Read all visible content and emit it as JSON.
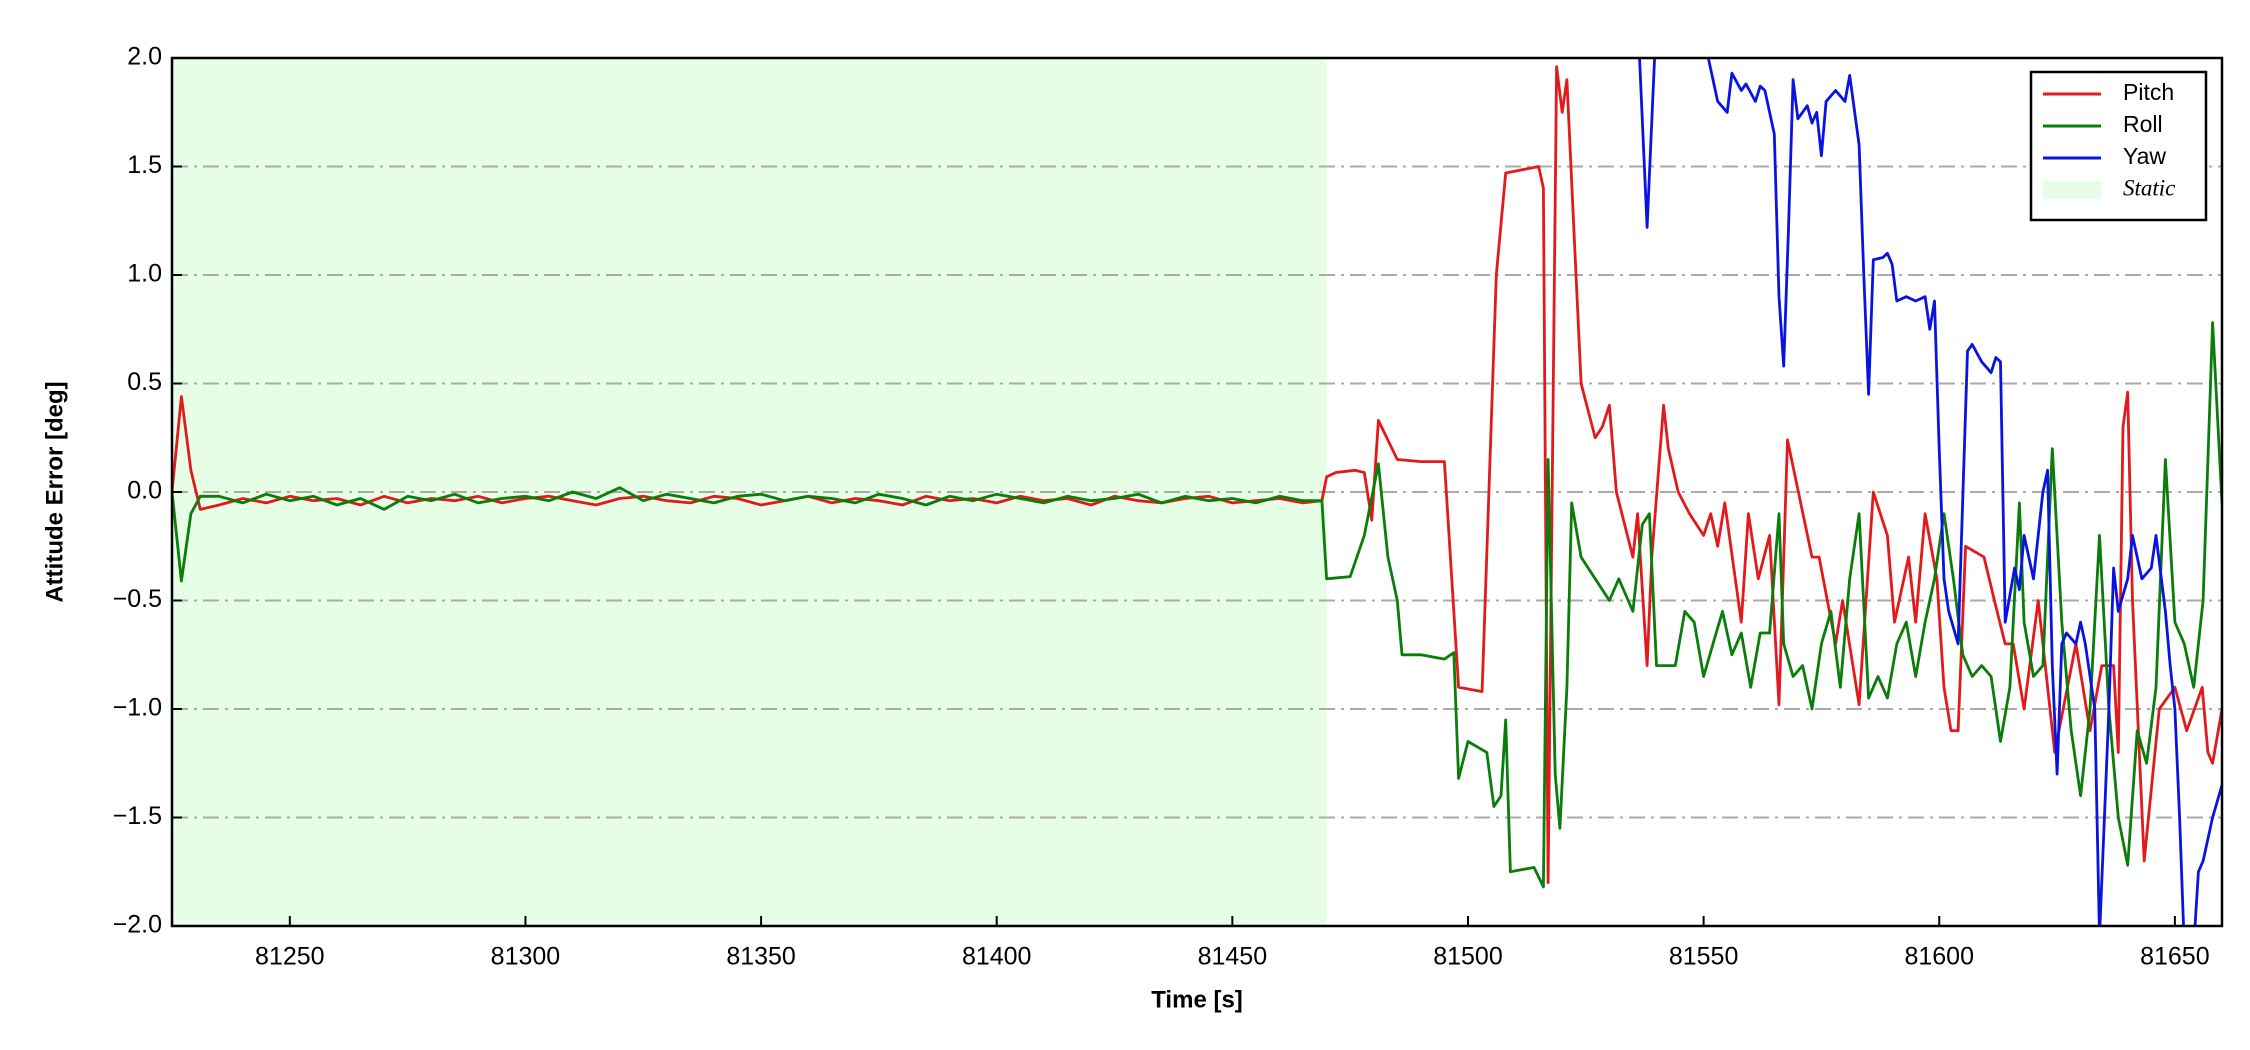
{
  "chart_data": {
    "type": "line",
    "xlabel": "Time [s]",
    "ylabel": "Attitude Error [deg]",
    "xlim": [
      81225,
      81660
    ],
    "ylim": [
      -2.0,
      2.0
    ],
    "xticks": [
      81250,
      81300,
      81350,
      81400,
      81450,
      81500,
      81550,
      81600,
      81650
    ],
    "yticks": [
      {
        "value": -2.0,
        "label": "−2.0"
      },
      {
        "value": -1.5,
        "label": "−1.5"
      },
      {
        "value": -1.0,
        "label": "−1.0"
      },
      {
        "value": -0.5,
        "label": "−0.5"
      },
      {
        "value": 0.0,
        "label": "0.0"
      },
      {
        "value": 0.5,
        "label": "0.5"
      },
      {
        "value": 1.0,
        "label": "1.0"
      },
      {
        "value": 1.5,
        "label": "1.5"
      },
      {
        "value": 2.0,
        "label": "2.0"
      }
    ],
    "grid": true,
    "legend": "upper right",
    "spans": [
      {
        "name": "Static",
        "start": 81225,
        "end": 81470,
        "color": "#e6fde6"
      }
    ],
    "series": [
      {
        "name": "Pitch",
        "color": "#e31a1c",
        "x": [
          81225,
          81227,
          81229,
          81231,
          81235,
          81240,
          81245,
          81250,
          81255,
          81260,
          81265,
          81270,
          81275,
          81280,
          81285,
          81290,
          81295,
          81300,
          81305,
          81310,
          81315,
          81320,
          81325,
          81330,
          81335,
          81340,
          81345,
          81350,
          81355,
          81360,
          81365,
          81370,
          81375,
          81380,
          81385,
          81390,
          81395,
          81400,
          81405,
          81410,
          81415,
          81420,
          81425,
          81430,
          81435,
          81440,
          81445,
          81450,
          81455,
          81460,
          81465,
          81469,
          81470,
          81472,
          81476,
          81478,
          81479.6,
          81481,
          81485,
          81490,
          81495,
          81498,
          81503,
          81506,
          81508,
          81515,
          81516,
          81517,
          81518.8,
          81520,
          81521,
          81524,
          81527,
          81528.5,
          81530,
          81531.5,
          81535,
          81536,
          81538,
          81539,
          81541.5,
          81542.5,
          81544.6,
          81547,
          81550,
          81551.5,
          81553,
          81554.5,
          81558,
          81559.5,
          81561.6,
          81564,
          81566,
          81567.8,
          81573,
          81574.5,
          81578,
          81579.5,
          81583,
          81586,
          81589,
          81590.5,
          81593.5,
          81595,
          81597,
          81599.5,
          81601,
          81602.5,
          81604,
          81605.6,
          81609.5,
          81611.7,
          81614,
          81615.7,
          81618,
          81621,
          81624.5,
          81629,
          81632,
          81634.5,
          81637,
          81638,
          81639,
          81640,
          81641,
          81643.5,
          81646.7,
          81650,
          81652.5,
          81655.8,
          81657,
          81658,
          81660
        ],
        "values": [
          0,
          0.44,
          0.1,
          -0.08,
          -0.06,
          -0.03,
          -0.05,
          -0.02,
          -0.04,
          -0.03,
          -0.06,
          -0.02,
          -0.05,
          -0.03,
          -0.04,
          -0.02,
          -0.05,
          -0.03,
          -0.02,
          -0.04,
          -0.06,
          -0.03,
          -0.02,
          -0.04,
          -0.05,
          -0.02,
          -0.03,
          -0.06,
          -0.04,
          -0.02,
          -0.05,
          -0.03,
          -0.04,
          -0.06,
          -0.02,
          -0.04,
          -0.03,
          -0.05,
          -0.02,
          -0.04,
          -0.03,
          -0.06,
          -0.02,
          -0.04,
          -0.05,
          -0.03,
          -0.02,
          -0.05,
          -0.04,
          -0.03,
          -0.05,
          -0.04,
          0.07,
          0.09,
          0.1,
          0.09,
          -0.13,
          0.33,
          0.15,
          0.14,
          0.14,
          -0.9,
          -0.92,
          1.0,
          1.47,
          1.5,
          1.4,
          -1.8,
          1.96,
          1.75,
          1.9,
          0.5,
          0.25,
          0.3,
          0.4,
          0.0,
          -0.3,
          -0.1,
          -0.8,
          -0.3,
          0.4,
          0.2,
          0.0,
          -0.1,
          -0.2,
          -0.1,
          -0.25,
          -0.05,
          -0.6,
          -0.1,
          -0.4,
          -0.2,
          -0.98,
          0.24,
          -0.3,
          -0.3,
          -0.7,
          -0.5,
          -0.98,
          0.0,
          -0.2,
          -0.6,
          -0.3,
          -0.6,
          -0.1,
          -0.4,
          -0.9,
          -1.1,
          -1.1,
          -0.25,
          -0.3,
          -0.5,
          -0.7,
          -0.7,
          -1.0,
          -0.5,
          -1.2,
          -0.7,
          -1.1,
          -0.8,
          -0.8,
          -1.2,
          0.3,
          0.46,
          -0.5,
          -1.7,
          -1.0,
          -0.9,
          -1.1,
          -0.9,
          -1.2,
          -1.25,
          -1.0
        ]
      },
      {
        "name": "Roll",
        "color": "#0a7d0a",
        "x": [
          81225,
          81227,
          81229,
          81231,
          81235,
          81240,
          81245,
          81250,
          81255,
          81260,
          81265,
          81270,
          81275,
          81280,
          81285,
          81290,
          81295,
          81300,
          81305,
          81310,
          81315,
          81320,
          81325,
          81330,
          81335,
          81340,
          81345,
          81350,
          81355,
          81360,
          81365,
          81370,
          81375,
          81380,
          81385,
          81390,
          81395,
          81400,
          81405,
          81410,
          81415,
          81420,
          81425,
          81430,
          81435,
          81440,
          81445,
          81450,
          81455,
          81460,
          81465,
          81469,
          81470,
          81475,
          81478,
          81481,
          81483,
          81485,
          81486,
          81490,
          81495,
          81497,
          81498,
          81500,
          81504,
          81505.5,
          81507,
          81508,
          81509,
          81514,
          81516,
          81517,
          81518.5,
          81519.5,
          81521,
          81522,
          81524,
          81527,
          81530,
          81532,
          81534,
          81535,
          81537,
          81538.5,
          81540,
          81544,
          81546,
          81548,
          81550,
          81552,
          81554,
          81556,
          81558,
          81560,
          81562,
          81564,
          81566,
          81567,
          81569,
          81571,
          81573,
          81575,
          81577,
          81579,
          81581,
          81583,
          81585,
          81587,
          81589,
          81591,
          81593,
          81595,
          81597,
          81599,
          81601,
          81603,
          81605,
          81607,
          81609,
          81611,
          81613,
          81615,
          81617,
          81618,
          81620,
          81622,
          81624,
          81626,
          81628,
          81630,
          81632,
          81634,
          81636,
          81638,
          81640,
          81642,
          81644,
          81646,
          81648,
          81650,
          81652,
          81654,
          81656,
          81658,
          81660
        ],
        "values": [
          0,
          -0.41,
          -0.1,
          -0.02,
          -0.02,
          -0.05,
          -0.01,
          -0.04,
          -0.02,
          -0.06,
          -0.03,
          -0.08,
          -0.02,
          -0.04,
          -0.01,
          -0.05,
          -0.03,
          -0.02,
          -0.04,
          0.0,
          -0.03,
          0.02,
          -0.04,
          -0.01,
          -0.03,
          -0.05,
          -0.02,
          -0.01,
          -0.04,
          -0.02,
          -0.03,
          -0.05,
          -0.01,
          -0.03,
          -0.06,
          -0.02,
          -0.04,
          -0.01,
          -0.03,
          -0.05,
          -0.02,
          -0.04,
          -0.03,
          -0.01,
          -0.05,
          -0.02,
          -0.04,
          -0.03,
          -0.05,
          -0.02,
          -0.04,
          -0.04,
          -0.4,
          -0.39,
          -0.2,
          0.13,
          -0.3,
          -0.5,
          -0.75,
          -0.75,
          -0.77,
          -0.74,
          -1.32,
          -1.15,
          -1.2,
          -1.45,
          -1.4,
          -1.05,
          -1.75,
          -1.73,
          -1.82,
          0.15,
          -1.3,
          -1.55,
          -0.9,
          -0.05,
          -0.3,
          -0.4,
          -0.5,
          -0.4,
          -0.5,
          -0.55,
          -0.15,
          -0.1,
          -0.8,
          -0.8,
          -0.55,
          -0.6,
          -0.85,
          -0.7,
          -0.55,
          -0.75,
          -0.65,
          -0.9,
          -0.65,
          -0.65,
          -0.1,
          -0.7,
          -0.85,
          -0.8,
          -1.0,
          -0.7,
          -0.55,
          -0.9,
          -0.4,
          -0.1,
          -0.95,
          -0.85,
          -0.95,
          -0.7,
          -0.6,
          -0.85,
          -0.6,
          -0.4,
          -0.1,
          -0.4,
          -0.75,
          -0.85,
          -0.8,
          -0.85,
          -1.15,
          -0.9,
          -0.05,
          -0.6,
          -0.85,
          -0.8,
          0.2,
          -0.6,
          -1.1,
          -1.4,
          -1.0,
          -0.2,
          -1.0,
          -1.5,
          -1.72,
          -1.1,
          -1.25,
          -0.9,
          0.15,
          -0.6,
          -0.7,
          -0.9,
          -0.5,
          0.78,
          -0.05
        ]
      },
      {
        "name": "Yaw",
        "color": "#0a14e0",
        "x": [
          81536,
          81538,
          81540,
          81550,
          81551,
          81553,
          81555,
          81556,
          81558,
          81559,
          81561,
          81562,
          81563,
          81565,
          81566,
          81567,
          81568,
          81569,
          81570,
          81572,
          81573,
          81574,
          81575,
          81576,
          81578,
          81580,
          81581,
          81583,
          81584,
          81585,
          81586,
          81588,
          81589,
          81590,
          81591,
          81593,
          81595,
          81597,
          81598,
          81599,
          81600,
          81601,
          81602,
          81604,
          81606,
          81607,
          81609,
          81611,
          81612,
          81613,
          81614,
          81616,
          81617,
          81618,
          81620,
          81622,
          81623,
          81624,
          81625,
          81626,
          81627,
          81629,
          81630,
          81631,
          81633,
          81634,
          81636,
          81637,
          81638,
          81640,
          81641,
          81643,
          81645,
          81646,
          81648,
          81649,
          81650,
          81651,
          81652,
          81654,
          81655,
          81656,
          81658,
          81660
        ],
        "values": [
          2.2,
          1.22,
          2.2,
          2.2,
          2.0,
          1.8,
          1.75,
          1.93,
          1.85,
          1.88,
          1.8,
          1.87,
          1.85,
          1.65,
          0.9,
          0.58,
          1.2,
          1.9,
          1.72,
          1.78,
          1.7,
          1.75,
          1.55,
          1.8,
          1.85,
          1.8,
          1.92,
          1.6,
          1.0,
          0.45,
          1.07,
          1.08,
          1.1,
          1.05,
          0.88,
          0.9,
          0.88,
          0.9,
          0.75,
          0.88,
          0.2,
          -0.4,
          -0.55,
          -0.7,
          0.65,
          0.68,
          0.6,
          0.55,
          0.62,
          0.6,
          -0.6,
          -0.35,
          -0.45,
          -0.2,
          -0.4,
          0.0,
          0.1,
          -0.8,
          -1.3,
          -0.7,
          -0.65,
          -0.7,
          -0.6,
          -0.7,
          -1.0,
          -2.05,
          -1.0,
          -0.35,
          -0.55,
          -0.4,
          -0.2,
          -0.4,
          -0.35,
          -0.2,
          -0.55,
          -0.8,
          -1.0,
          -1.5,
          -2.1,
          -2.1,
          -1.75,
          -1.7,
          -1.5,
          -1.35
        ]
      }
    ]
  }
}
